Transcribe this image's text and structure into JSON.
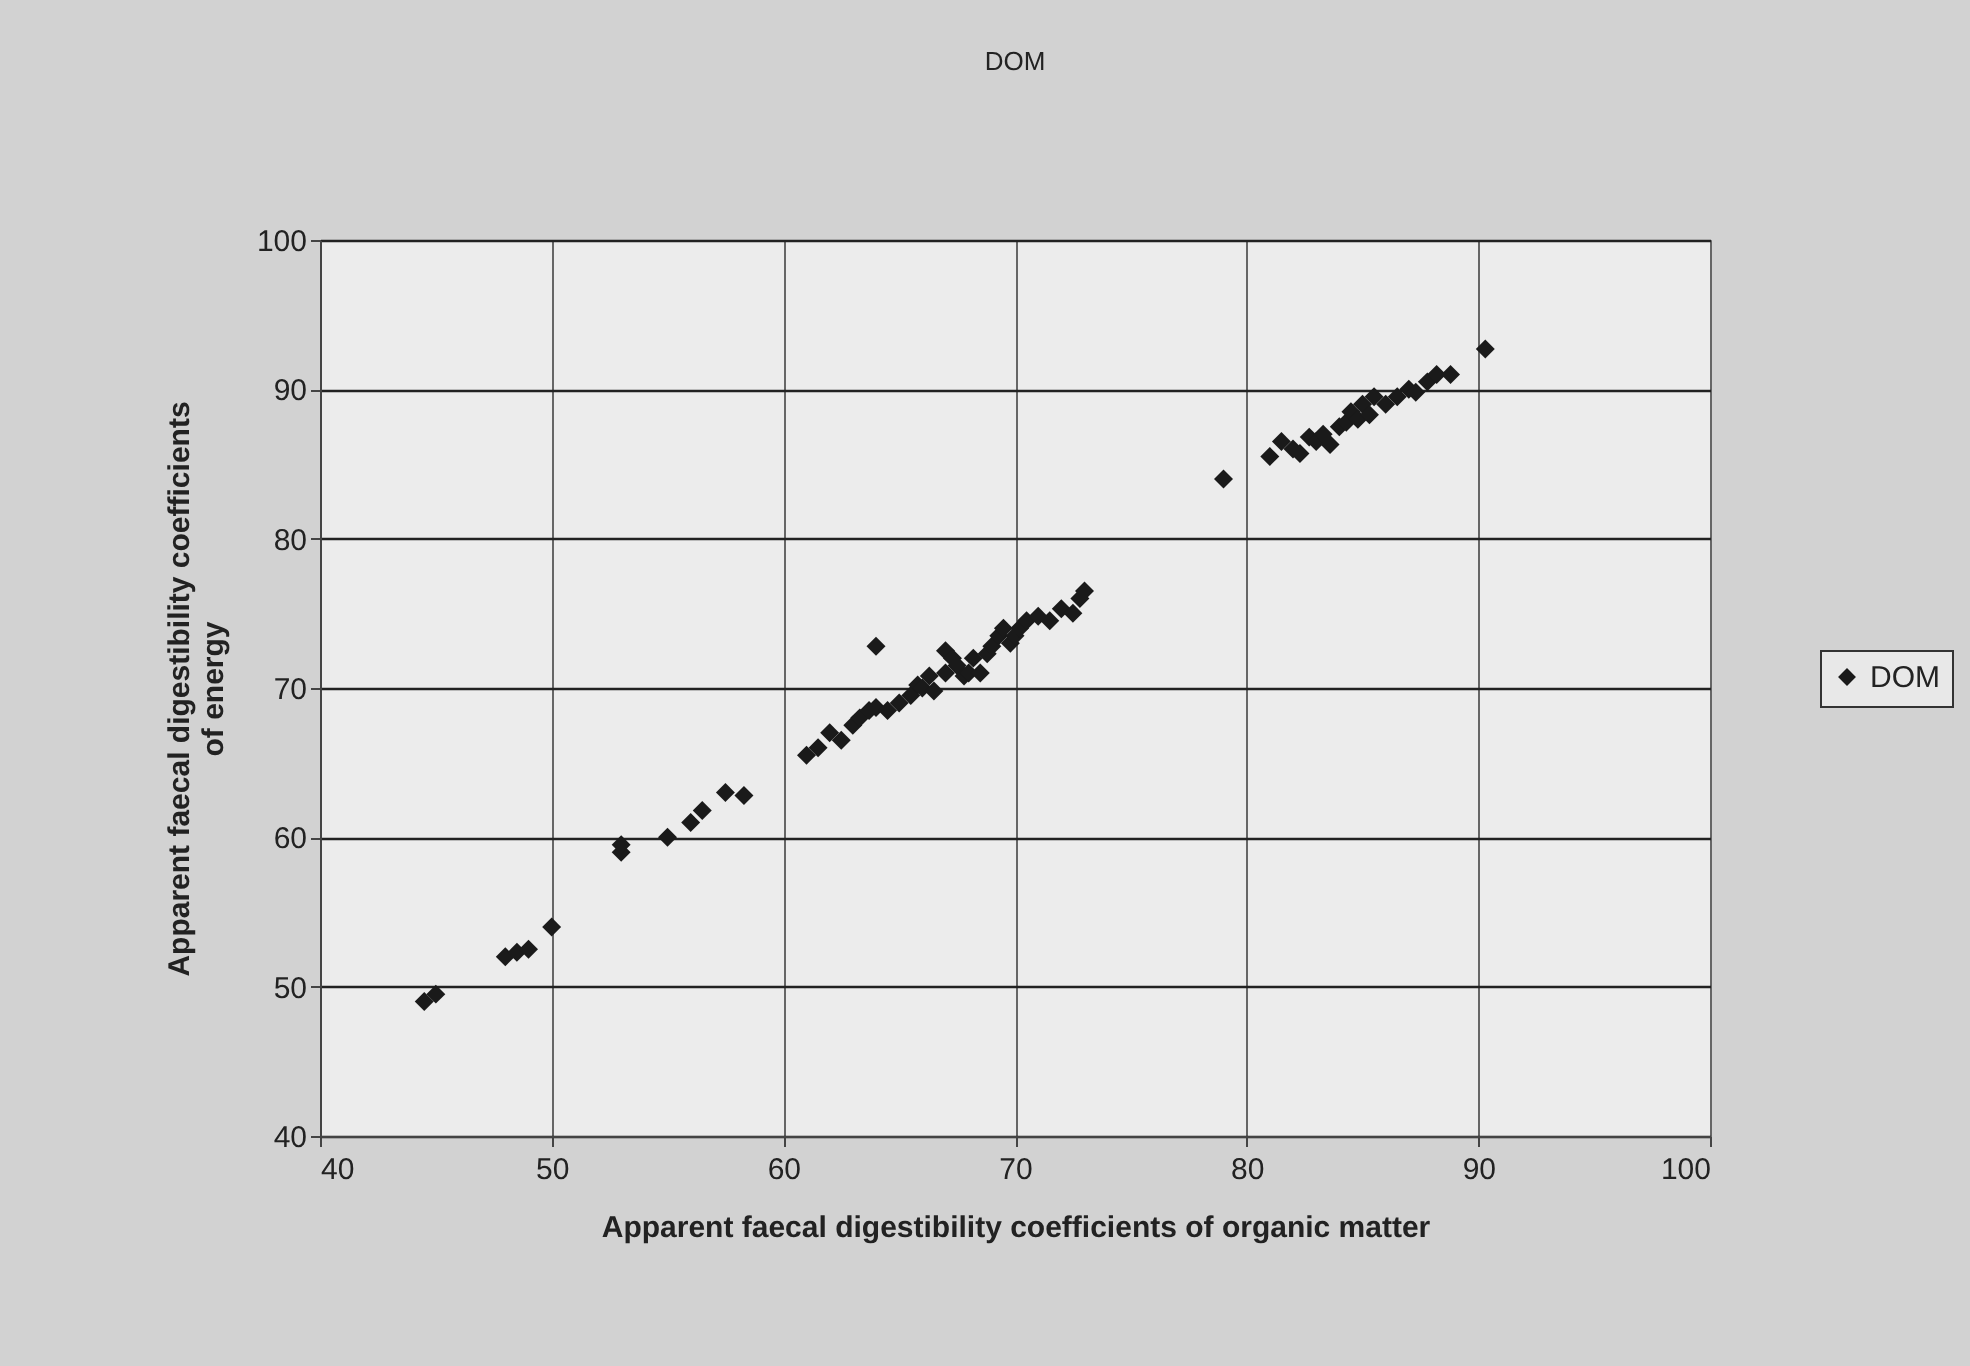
{
  "chart_data": {
    "type": "scatter",
    "title": "DOM",
    "xlabel": "Apparent faecal digestibility coefficients of organic matter",
    "ylabel": "Apparent faecal digestibility coefficients\nof energy",
    "xlim": [
      40,
      100
    ],
    "ylim": [
      40,
      100
    ],
    "xticks": [
      40,
      50,
      60,
      70,
      80,
      90,
      100
    ],
    "yticks": [
      40,
      50,
      60,
      70,
      80,
      90,
      100
    ],
    "grid": true,
    "legend": "right",
    "marker": "diamond",
    "series": [
      {
        "name": "DOM",
        "color": "#1a1a1a",
        "x": [
          44.5,
          45,
          48,
          48.5,
          49,
          50,
          53,
          53,
          55,
          56,
          56.5,
          57.5,
          58.3,
          61,
          61.5,
          62,
          62.5,
          63,
          63.3,
          63.7,
          64,
          64,
          64.5,
          65,
          65.5,
          65.8,
          66,
          66.3,
          66.5,
          67,
          67,
          67.3,
          67.5,
          67.8,
          68,
          68.2,
          68.5,
          68.8,
          69,
          69.3,
          69.5,
          69.8,
          70,
          70.2,
          70.5,
          71,
          71.5,
          72,
          72.5,
          72.8,
          73,
          79,
          81,
          81.5,
          82,
          82.3,
          82.7,
          83,
          83.3,
          83.6,
          84,
          84.3,
          84.5,
          84.8,
          85,
          85.3,
          85.5,
          86,
          86.5,
          87,
          87.3,
          87.8,
          88.2,
          88.8,
          90.3
        ],
        "values": [
          49,
          49.5,
          52,
          52.3,
          52.5,
          54,
          59,
          59.5,
          60,
          61,
          61.8,
          63,
          62.8,
          65.5,
          66,
          67,
          66.5,
          67.5,
          68,
          68.5,
          68.7,
          72.8,
          68.5,
          69,
          69.5,
          70.2,
          70,
          70.8,
          69.8,
          71,
          72.5,
          72,
          71.5,
          70.8,
          71,
          72,
          71,
          72.3,
          72.8,
          73.5,
          74,
          73,
          73.5,
          74,
          74.5,
          74.8,
          74.5,
          75.3,
          75,
          76,
          76.5,
          84,
          85.5,
          86.5,
          86,
          85.7,
          86.8,
          86.5,
          87,
          86.3,
          87.5,
          87.8,
          88.5,
          88,
          89,
          88.3,
          89.5,
          89,
          89.5,
          90,
          89.8,
          90.5,
          91,
          91,
          92.7
        ]
      }
    ]
  }
}
